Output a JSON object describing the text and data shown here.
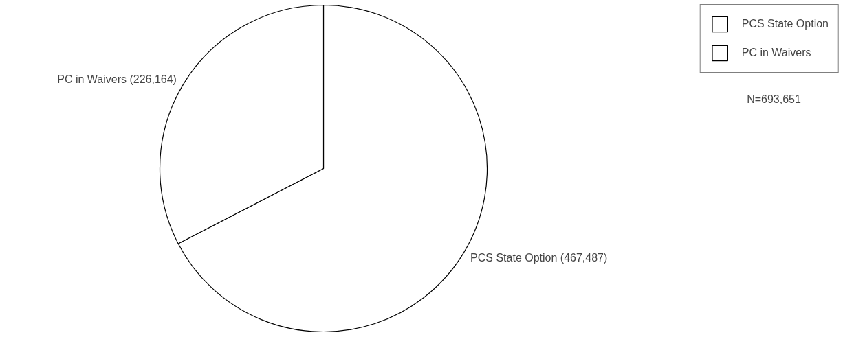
{
  "chart_data": {
    "type": "pie",
    "categories": [
      "PCS State Option",
      "PC in Waivers"
    ],
    "values": [
      467487,
      226164
    ],
    "colors": [
      "#ffffff",
      "#ffffff"
    ],
    "value_labels": [
      "PCS State Option (467,487)",
      "PC in Waivers (226,164)"
    ],
    "legend": "top right",
    "annotations": [
      "N=693,651"
    ]
  }
}
